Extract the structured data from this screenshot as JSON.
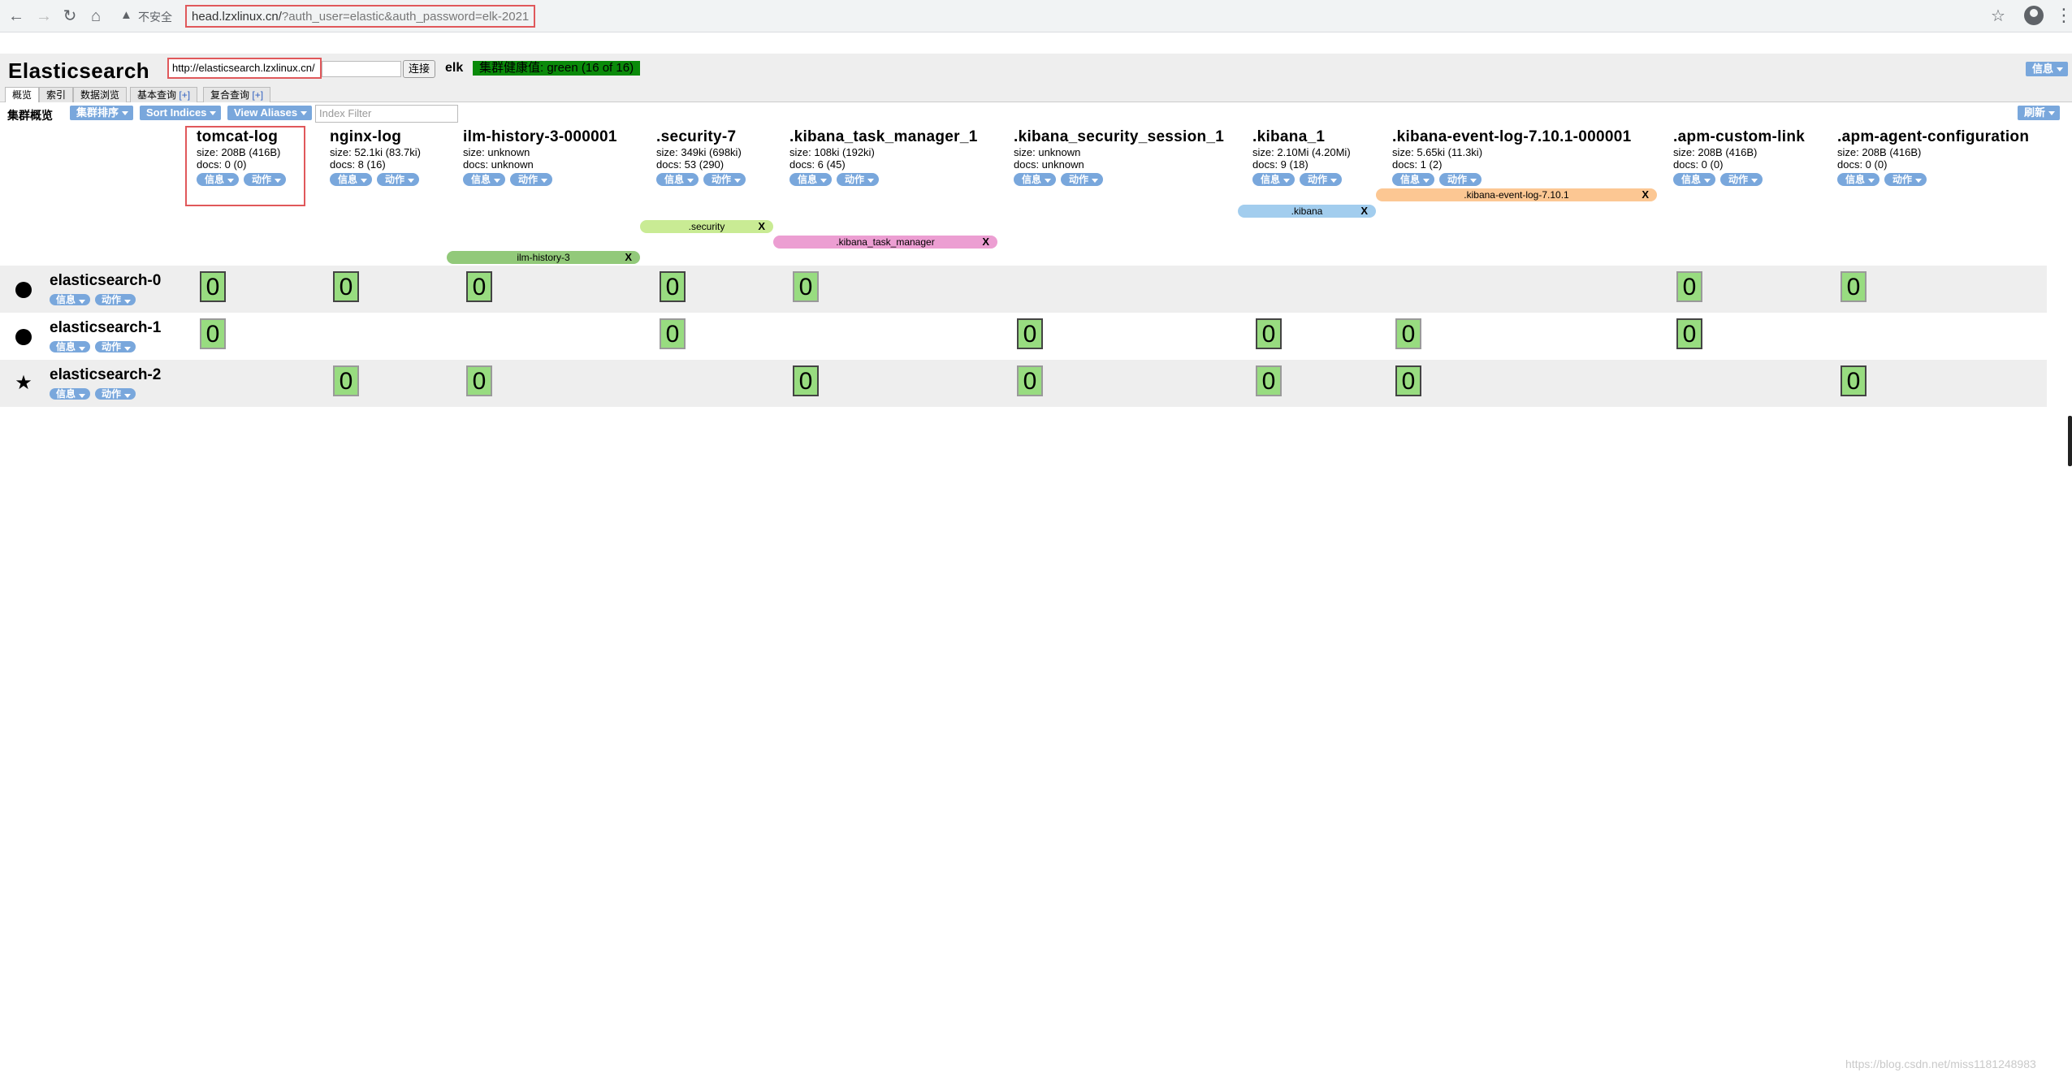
{
  "browser": {
    "insecure_label": "不安全",
    "url_host": "head.lzxlinux.cn/",
    "url_rest": "?auth_user=elastic&auth_password=elk-2021"
  },
  "app": {
    "title": "Elasticsearch",
    "connect_url": "http://elasticsearch.lzxlinux.cn/",
    "connect_label": "连接",
    "cluster_name": "elk",
    "health": "集群健康值: green (16 of 16)",
    "info_label": "信息"
  },
  "tabs": [
    {
      "label": "概览"
    },
    {
      "label": "索引"
    },
    {
      "label": "数据浏览"
    },
    {
      "label": "基本查询",
      "plus": "[+]"
    },
    {
      "label": "复合查询",
      "plus": "[+]"
    }
  ],
  "toolbar": {
    "title": "集群概览",
    "sort_cluster": "集群排序",
    "sort_indices": "Sort Indices",
    "view_aliases": "View Aliases",
    "filter_placeholder": "Index Filter",
    "refresh": "刷新"
  },
  "buttons": {
    "info": "信息",
    "actions": "动作"
  },
  "indices": [
    {
      "name": "tomcat-log",
      "size": "size: 208B (416B)",
      "docs": "docs: 0 (0)"
    },
    {
      "name": "nginx-log",
      "size": "size: 52.1ki (83.7ki)",
      "docs": "docs: 8 (16)"
    },
    {
      "name": "ilm-history-3-000001",
      "size": "size: unknown",
      "docs": "docs: unknown"
    },
    {
      "name": ".security-7",
      "size": "size: 349ki (698ki)",
      "docs": "docs: 53 (290)"
    },
    {
      "name": ".kibana_task_manager_1",
      "size": "size: 108ki (192ki)",
      "docs": "docs: 6 (45)"
    },
    {
      "name": ".kibana_security_session_1",
      "size": "size: unknown",
      "docs": "docs: unknown"
    },
    {
      "name": ".kibana_1",
      "size": "size: 2.10Mi (4.20Mi)",
      "docs": "docs: 9 (18)"
    },
    {
      "name": ".kibana-event-log-7.10.1-000001",
      "size": "size: 5.65ki (11.3ki)",
      "docs": "docs: 1 (2)"
    },
    {
      "name": ".apm-custom-link",
      "size": "size: 208B (416B)",
      "docs": "docs: 0 (0)"
    },
    {
      "name": ".apm-agent-configuration",
      "size": "size: 208B (416B)",
      "docs": "docs: 0 (0)"
    }
  ],
  "aliases": [
    {
      "name": ".kibana-event-log-7.10.1",
      "color": "#fcc793"
    },
    {
      "name": ".kibana",
      "color": "#a2cdee"
    },
    {
      "name": ".security",
      "color": "#c9eb94"
    },
    {
      "name": ".kibana_task_manager",
      "color": "#ec9ed2"
    },
    {
      "name": "ilm-history-3",
      "color": "#92c97a"
    }
  ],
  "alias_remove": "X",
  "nodes": [
    {
      "name": "elasticsearch-0",
      "icon": "circle-icon"
    },
    {
      "name": "elasticsearch-1",
      "icon": "circle-icon"
    },
    {
      "name": "elasticsearch-2",
      "icon": "star-icon"
    }
  ],
  "shard_label": "0",
  "watermark": "https://blog.csdn.net/miss1181248983"
}
